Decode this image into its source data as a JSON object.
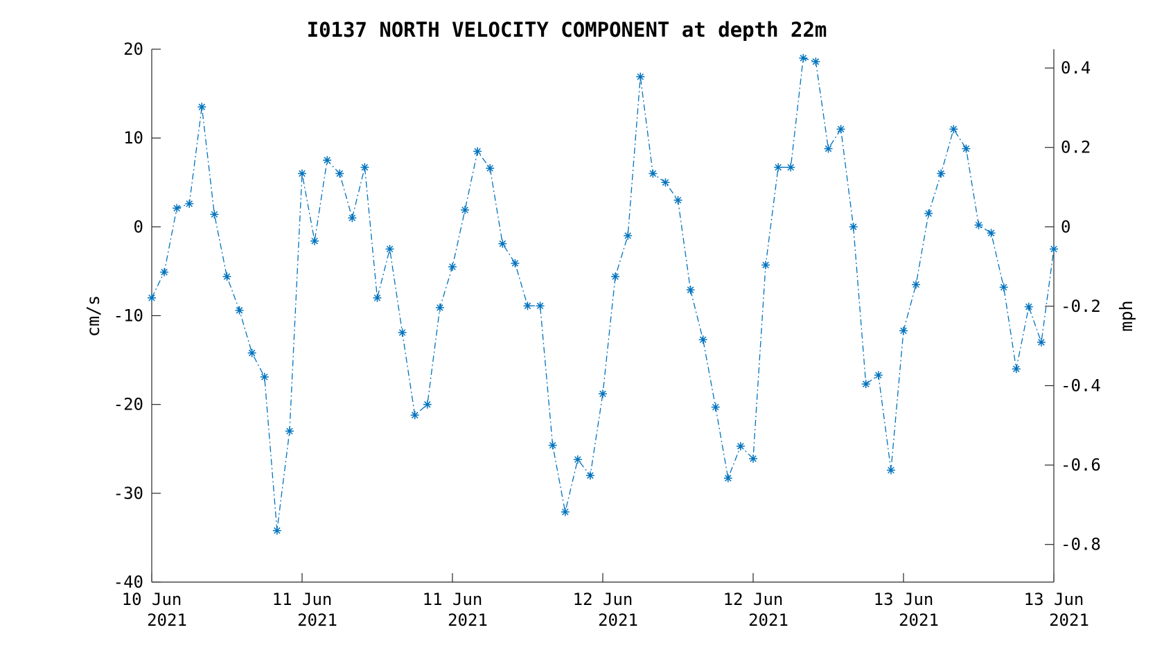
{
  "chart_data": {
    "type": "line",
    "title": "I0137 NORTH VELOCITY COMPONENT at depth 22m",
    "ylabel_left": "cm/s",
    "ylabel_right": "mph",
    "ylim_left": [
      -40,
      20
    ],
    "ylim_right_mph": [
      -0.8948,
      0.4474
    ],
    "yticks_left": [
      "20",
      "10",
      "0",
      "-10",
      "-20",
      "-30",
      "-40"
    ],
    "yticks_left_values": [
      20,
      10,
      0,
      -10,
      -20,
      -30,
      -40
    ],
    "yticks_right": [
      "0.4",
      "0.2",
      "0",
      "-0.2",
      "-0.4",
      "-0.6",
      "-0.8"
    ],
    "yticks_right_values": [
      0.4,
      0.2,
      0,
      -0.2,
      -0.4,
      -0.6,
      -0.8
    ],
    "xticks": [
      {
        "line1": "10 Jun",
        "line2": "2021"
      },
      {
        "line1": "11 Jun",
        "line2": "2021"
      },
      {
        "line1": "11 Jun",
        "line2": "2021"
      },
      {
        "line1": "12 Jun",
        "line2": "2021"
      },
      {
        "line1": "12 Jun",
        "line2": "2021"
      },
      {
        "line1": "13 Jun",
        "line2": "2021"
      },
      {
        "line1": "13 Jun",
        "line2": "2021"
      }
    ],
    "x_hours_per_tick": 12,
    "x_range_hours": [
      0,
      72
    ],
    "x_step_hours": 1,
    "grid": false,
    "series_color": "#0072BD",
    "marker": "asterisk",
    "line_style": "dash-dot",
    "series": [
      {
        "values": [
          -8.0,
          -5.1,
          2.1,
          2.6,
          13.5,
          1.4,
          -5.6,
          -9.4,
          -14.2,
          -16.9,
          -34.2,
          -23.0,
          6.0,
          -1.6,
          7.5,
          6.0,
          1.0,
          6.7,
          -8.0,
          -2.5,
          -11.9,
          -21.2,
          -20.0,
          -9.1,
          -4.5,
          1.9,
          8.5,
          6.6,
          -1.9,
          -4.1,
          -8.9,
          -8.9,
          -24.6,
          -32.1,
          -26.2,
          -28.0,
          -18.8,
          -5.6,
          -1.0,
          16.9,
          6.0,
          5.0,
          3.0,
          -7.1,
          -12.7,
          -20.3,
          -28.3,
          -24.7,
          -26.1,
          -4.3,
          6.7,
          6.7,
          19.0,
          18.6,
          8.8,
          11.0,
          0.0,
          -17.7,
          -16.7,
          -27.4,
          -11.7,
          -6.5,
          1.5,
          6.0,
          11.0,
          8.8,
          0.2,
          -0.7,
          -6.8,
          -16.0,
          -9.0,
          -13.0,
          -2.5
        ]
      }
    ]
  }
}
